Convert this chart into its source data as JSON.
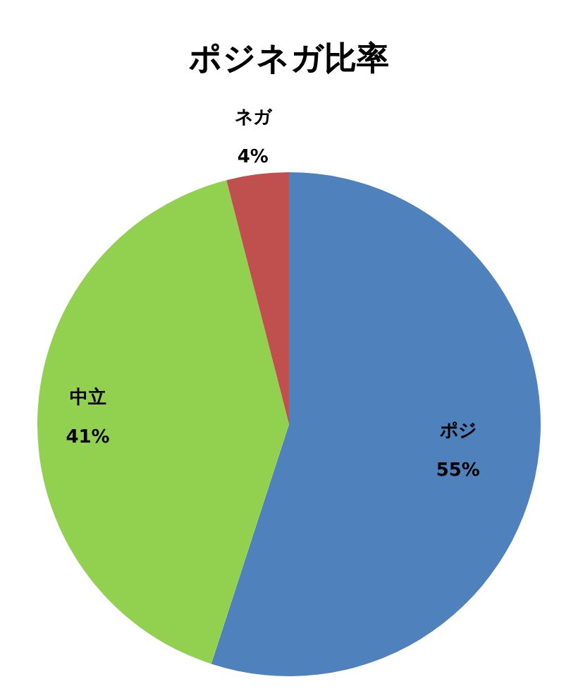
{
  "chart_data": {
    "type": "pie",
    "title": "ポジネガ比率",
    "categories": [
      "ポジ",
      "中立",
      "ネガ"
    ],
    "values": [
      55,
      41,
      4
    ],
    "colors": [
      "#4f81bd",
      "#92d050",
      "#c0504d"
    ],
    "value_labels": [
      "55%",
      "41%",
      "4%"
    ],
    "legend": false
  }
}
